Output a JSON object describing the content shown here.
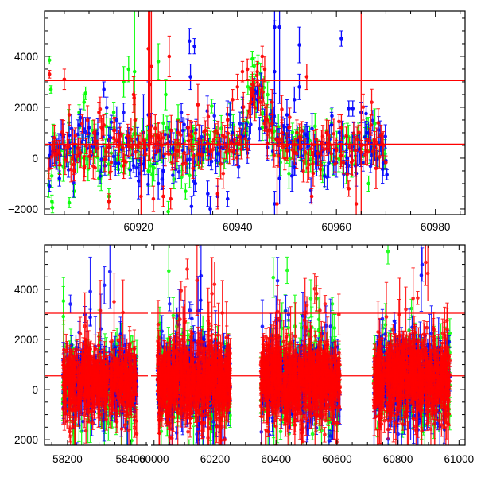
{
  "chart_data": [
    {
      "type": "scatter",
      "panel": "top",
      "title": "",
      "xlabel": "",
      "ylabel": "",
      "xlim": [
        60901,
        60986
      ],
      "ylim": [
        -2220,
        5780
      ],
      "x_ticks": [
        60920,
        60940,
        60960,
        60980
      ],
      "x_tick_labels": [
        "60920",
        "60940",
        "60960",
        "60980"
      ],
      "y_ticks": [
        -2000,
        0,
        2000,
        4000
      ],
      "y_tick_labels": [
        "−2000",
        "0",
        "2000",
        "4000"
      ],
      "hlines": [
        3050,
        550
      ],
      "model": {
        "baseline": 550,
        "amplitude": 2450,
        "t0": 60944,
        "width": 2.2,
        "range": [
          60937,
          60950
        ]
      },
      "background": {
        "start": 60902,
        "end": 60970,
        "step": 0.35,
        "scatter": 550,
        "mean": 450
      },
      "series": [
        {
          "name": "green",
          "color": "#00ff00",
          "points": [
            [
              60902,
              3850,
              150
            ],
            [
              60902.3,
              2700,
              150
            ],
            [
              60902.5,
              -1700,
              250
            ],
            [
              60902.6,
              -1950,
              200
            ],
            [
              60903,
              600,
              400
            ],
            [
              60904,
              -600,
              300
            ],
            [
              60905,
              100,
              500
            ],
            [
              60906,
              -1750,
              200
            ],
            [
              60907,
              -1300,
              250
            ],
            [
              60908,
              1800,
              300
            ],
            [
              60909,
              2200,
              300
            ],
            [
              60909.3,
              2550,
              250
            ],
            [
              60911,
              200,
              400
            ],
            [
              60912,
              -800,
              300
            ],
            [
              60914,
              -1500,
              300
            ],
            [
              60915,
              1800,
              400
            ],
            [
              60917,
              3000,
              600
            ],
            [
              60918,
              3500,
              500
            ],
            [
              60919.2,
              3400,
              2500
            ],
            [
              60922,
              -500,
              600
            ],
            [
              60924,
              3800,
              700
            ],
            [
              60925.5,
              2500,
              600
            ],
            [
              60926,
              -2100,
              400
            ],
            [
              60928,
              1500,
              600
            ],
            [
              60929.5,
              -1300,
              300
            ],
            [
              60931,
              800,
              500
            ],
            [
              60933,
              200,
              400
            ],
            [
              60936,
              600,
              500
            ],
            [
              60938,
              200,
              400
            ],
            [
              60940,
              500,
              400
            ],
            [
              60941,
              1800,
              500
            ],
            [
              60942,
              1400,
              500
            ],
            [
              60943,
              3900,
              300
            ],
            [
              60943.5,
              2600,
              600
            ],
            [
              60945,
              1200,
              500
            ],
            [
              60947,
              800,
              700
            ],
            [
              60950,
              300,
              500
            ],
            [
              60953,
              -100,
              400
            ],
            [
              60956,
              200,
              400
            ],
            [
              60958,
              600,
              400
            ],
            [
              60960,
              400,
              400
            ],
            [
              60962,
              -600,
              400
            ],
            [
              60966.5,
              -1000,
              300
            ],
            [
              60968,
              200,
              300
            ]
          ]
        },
        {
          "name": "blue",
          "color": "#0000ff",
          "points": [
            [
              60902,
              -1100,
              200
            ],
            [
              60903,
              300,
              500
            ],
            [
              60904,
              -800,
              300
            ],
            [
              60906,
              900,
              500
            ],
            [
              60907,
              500,
              600
            ],
            [
              60908,
              1300,
              400
            ],
            [
              60910,
              1200,
              400
            ],
            [
              60913,
              2700,
              300
            ],
            [
              60914,
              400,
              500
            ],
            [
              60916,
              -200,
              400
            ],
            [
              60918,
              600,
              600
            ],
            [
              60920,
              -900,
              700
            ],
            [
              60921,
              1000,
              1500
            ],
            [
              60922,
              1700,
              1300
            ],
            [
              60924,
              -1000,
              600
            ],
            [
              60925,
              -500,
              700
            ],
            [
              60927,
              400,
              600
            ],
            [
              60929,
              300,
              500
            ],
            [
              60930.3,
              4600,
              500
            ],
            [
              60930.5,
              3200,
              500
            ],
            [
              60930.7,
              -1900,
              400
            ],
            [
              60931.3,
              4400,
              300
            ],
            [
              60931.5,
              -1000,
              300
            ],
            [
              60934,
              -1400,
              500
            ],
            [
              60934.5,
              -2000,
              500
            ],
            [
              60936,
              -1500,
              400
            ],
            [
              60938,
              -1600,
              300
            ],
            [
              60939,
              1000,
              400
            ],
            [
              60941,
              2000,
              400
            ],
            [
              60942,
              200,
              400
            ],
            [
              60943,
              2400,
              400
            ],
            [
              60944,
              2300,
              500
            ],
            [
              60946,
              600,
              500
            ],
            [
              60947.5,
              5150,
              2600
            ],
            [
              60947.5,
              3400,
              2000
            ],
            [
              60947.5,
              -1800,
              500
            ],
            [
              60948.5,
              5150,
              3000
            ],
            [
              60948.5,
              -800,
              1000
            ],
            [
              60950,
              1700,
              600
            ],
            [
              60951,
              -700,
              600
            ],
            [
              60951.5,
              2300,
              500
            ],
            [
              60952.5,
              4450,
              700
            ],
            [
              60952.5,
              2800,
              500
            ],
            [
              60954,
              900,
              500
            ],
            [
              60956,
              -200,
              500
            ],
            [
              60958,
              600,
              400
            ],
            [
              60959,
              1300,
              500
            ],
            [
              60961,
              4700,
              300
            ],
            [
              60962,
              -200,
              500
            ],
            [
              60962.5,
              1950,
              300
            ],
            [
              60963.3,
              1950,
              300
            ],
            [
              60964,
              -600,
              500
            ],
            [
              60965,
              1800,
              400
            ],
            [
              60966,
              1750,
              300
            ],
            [
              60967,
              600,
              400
            ],
            [
              60969,
              500,
              400
            ],
            [
              60970,
              -100,
              300
            ],
            [
              60970.2,
              -650,
              200
            ]
          ]
        },
        {
          "name": "red",
          "color": "#ff0000",
          "points": [
            [
              60902,
              3300,
              150
            ],
            [
              60903,
              800,
              500
            ],
            [
              60904,
              200,
              500
            ],
            [
              60905,
              3100,
              400
            ],
            [
              60906,
              1700,
              400
            ],
            [
              60907,
              -500,
              400
            ],
            [
              60909,
              -400,
              500
            ],
            [
              60911,
              1000,
              500
            ],
            [
              60912,
              1800,
              400
            ],
            [
              60913,
              1300,
              400
            ],
            [
              60914,
              -1700,
              300
            ],
            [
              60915,
              800,
              600
            ],
            [
              60916,
              500,
              600
            ],
            [
              60917,
              -300,
              500
            ],
            [
              60919,
              2500,
              700
            ],
            [
              60919.3,
              1500,
              1000
            ],
            [
              60920.5,
              -1500,
              1500
            ],
            [
              60922,
              4300,
              3000
            ],
            [
              60922.3,
              2900,
              3000
            ],
            [
              60922.6,
              3600,
              3000
            ],
            [
              60923,
              -1600,
              500
            ],
            [
              60924,
              800,
              600
            ],
            [
              60925,
              -1500,
              400
            ],
            [
              60926.2,
              4000,
              800
            ],
            [
              60926.5,
              -1600,
              400
            ],
            [
              60928,
              1000,
              500
            ],
            [
              60930,
              1200,
              500
            ],
            [
              60931,
              -400,
              400
            ],
            [
              60932,
              2100,
              800
            ],
            [
              60934,
              600,
              500
            ],
            [
              60936,
              -1400,
              600
            ],
            [
              60937,
              900,
              500
            ],
            [
              60938,
              1500,
              500
            ],
            [
              60939,
              2300,
              400
            ],
            [
              60940,
              2800,
              500
            ],
            [
              60941,
              3400,
              400
            ],
            [
              60942,
              3500,
              400
            ],
            [
              60943,
              2900,
              500
            ],
            [
              60944,
              3400,
              400
            ],
            [
              60945,
              4000,
              400
            ],
            [
              60945.5,
              3500,
              500
            ],
            [
              60946,
              1500,
              600
            ],
            [
              60947,
              2200,
              500
            ],
            [
              60948,
              -1800,
              1500
            ],
            [
              60949,
              1000,
              500
            ],
            [
              60950,
              500,
              500
            ],
            [
              60952,
              1000,
              500
            ],
            [
              60954,
              3200,
              500
            ],
            [
              60955,
              -1500,
              300
            ],
            [
              60955.3,
              -600,
              500
            ],
            [
              60957,
              600,
              500
            ],
            [
              60958,
              1000,
              500
            ],
            [
              60960,
              300,
              500
            ],
            [
              60961,
              1200,
              500
            ],
            [
              60962.5,
              -1200,
              300
            ],
            [
              60964,
              -1800,
              2000
            ],
            [
              60965,
              500,
              12000
            ],
            [
              60966,
              300,
              400
            ],
            [
              60967,
              1300,
              400
            ],
            [
              60968,
              -400,
              800
            ],
            [
              60969,
              900,
              400
            ]
          ]
        }
      ]
    },
    {
      "type": "scatter",
      "panel": "bottom",
      "title": "",
      "xlabel": "",
      "ylabel": "",
      "broken_x_axis": true,
      "x_segments": [
        [
          58127,
          58460
        ],
        [
          59985,
          61020
        ]
      ],
      "ylim": [
        -2220,
        5780
      ],
      "x_ticks": [
        58200,
        58400,
        60000,
        60200,
        60400,
        60600,
        60800,
        61000
      ],
      "x_tick_labels": [
        "58200",
        "58400",
        "60000",
        "60200",
        "60400",
        "60600",
        "60800",
        "61000"
      ],
      "y_ticks": [
        -2000,
        0,
        2000,
        4000
      ],
      "y_tick_labels": [
        "−2000",
        "0",
        "2000",
        "4000"
      ],
      "hlines": [
        3050,
        550
      ],
      "seasons": [
        {
          "start": 58185,
          "end": 58420,
          "mean": 300,
          "scatter": 900,
          "points": 500
        },
        {
          "start": 60010,
          "end": 60250,
          "mean": 400,
          "scatter": 1000,
          "points": 650
        },
        {
          "start": 60350,
          "end": 60610,
          "mean": 350,
          "scatter": 1000,
          "points": 650
        },
        {
          "start": 60720,
          "end": 60970,
          "mean": 450,
          "scatter": 1000,
          "points": 650
        }
      ],
      "series": [
        {
          "name": "green",
          "color": "#00ff00"
        },
        {
          "name": "blue",
          "color": "#0000ff"
        },
        {
          "name": "red",
          "color": "#ff0000"
        }
      ]
    }
  ]
}
